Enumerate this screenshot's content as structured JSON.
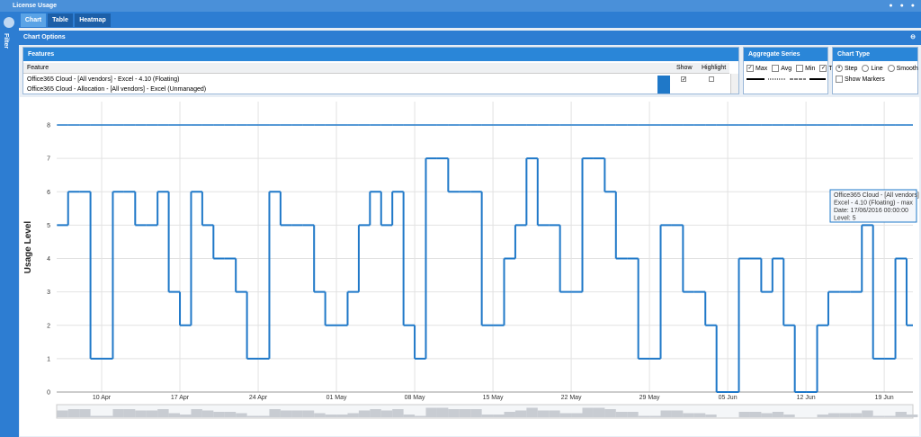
{
  "window": {
    "title": "License Usage",
    "filter": "Filter"
  },
  "tabs": [
    "Chart",
    "Table",
    "Heatmap"
  ],
  "chart_options": {
    "title": "Chart Options",
    "features": {
      "title": "Features",
      "columns": [
        "Feature",
        "Show",
        "Highlight"
      ],
      "rows": [
        "Office365 Cloud - [All vendors] - Excel - 4.10 (Floating)",
        "Office365 Cloud - Allocation - [All vendors] - Excel (Unmanaged)"
      ]
    },
    "aggregate": {
      "title": "Aggregate Series",
      "options": [
        "Max",
        "Avg",
        "Min",
        "Total"
      ],
      "checked": [
        true,
        false,
        false,
        true
      ]
    },
    "chart_type": {
      "title": "Chart Type",
      "options": [
        "Step",
        "Line",
        "Smooth"
      ],
      "selected": 0,
      "markers": "Show Markers"
    }
  },
  "tooltip": {
    "lines": [
      "Office365 Cloud - [All vendors] -",
      "Excel - 4.10 (Floating) - max",
      "Date: 17/06/2016 00:00:00",
      "Level: 5"
    ]
  },
  "chart_data": {
    "type": "step",
    "y_label": "Usage Level",
    "grid": true,
    "x": [
      "06 Apr",
      "07 Apr",
      "08 Apr",
      "09 Apr",
      "10 Apr",
      "11 Apr",
      "12 Apr",
      "13 Apr",
      "14 Apr",
      "15 Apr",
      "16 Apr",
      "17 Apr",
      "18 Apr",
      "19 Apr",
      "20 Apr",
      "21 Apr",
      "22 Apr",
      "23 Apr",
      "24 Apr",
      "25 Apr",
      "26 Apr",
      "27 Apr",
      "28 Apr",
      "29 Apr",
      "30 Apr",
      "01 May",
      "02 May",
      "03 May",
      "04 May",
      "05 May",
      "06 May",
      "07 May",
      "08 May",
      "09 May",
      "10 May",
      "11 May",
      "12 May",
      "13 May",
      "14 May",
      "15 May",
      "16 May",
      "17 May",
      "18 May",
      "19 May",
      "20 May",
      "21 May",
      "22 May",
      "23 May",
      "24 May",
      "25 May",
      "26 May",
      "27 May",
      "28 May",
      "29 May",
      "30 May",
      "31 May",
      "01 Jun",
      "02 Jun",
      "03 Jun",
      "04 Jun",
      "05 Jun",
      "06 Jun",
      "07 Jun",
      "08 Jun",
      "09 Jun",
      "10 Jun",
      "11 Jun",
      "12 Jun",
      "13 Jun",
      "14 Jun",
      "15 Jun",
      "16 Jun",
      "17 Jun",
      "18 Jun",
      "19 Jun",
      "20 Jun",
      "21 Jun"
    ],
    "xticks": [
      "10 Apr",
      "17 Apr",
      "24 Apr",
      "01 May",
      "08 May",
      "15 May",
      "22 May",
      "29 May",
      "05 Jun",
      "12 Jun",
      "19 Jun"
    ],
    "ylim": [
      0,
      8.7
    ],
    "yticks": [
      0,
      1,
      2,
      3,
      4,
      5,
      6,
      7,
      8
    ],
    "series": [
      {
        "color": "#1f78c8",
        "values": [
          5,
          6,
          6,
          1,
          1,
          6,
          6,
          5,
          5,
          6,
          3,
          2,
          6,
          5,
          4,
          4,
          3,
          1,
          1,
          6,
          5,
          5,
          5,
          3,
          2,
          2,
          3,
          5,
          6,
          5,
          6,
          2,
          1,
          7,
          7,
          6,
          6,
          6,
          2,
          2,
          4,
          5,
          7,
          5,
          5,
          3,
          3,
          7,
          7,
          6,
          4,
          4,
          1,
          1,
          5,
          5,
          3,
          3,
          2,
          0,
          0,
          4,
          4,
          3,
          4,
          2,
          0,
          0,
          2,
          3,
          3,
          3,
          5,
          1,
          1,
          4,
          2
        ]
      },
      {
        "color": "#1f78c8",
        "values": [
          8,
          8,
          8,
          8,
          8,
          8,
          8,
          8,
          8,
          8,
          8,
          8,
          8,
          8,
          8,
          8,
          8,
          8,
          8,
          8,
          8,
          8,
          8,
          8,
          8,
          8,
          8,
          8,
          8,
          8,
          8,
          8,
          8,
          8,
          8,
          8,
          8,
          8,
          8,
          8,
          8,
          8,
          8,
          8,
          8,
          8,
          8,
          8,
          8,
          8,
          8,
          8,
          8,
          8,
          8,
          8,
          8,
          8,
          8,
          8,
          8,
          8,
          8,
          8,
          8,
          8,
          8,
          8,
          8,
          8,
          8,
          8,
          8,
          8,
          8,
          8,
          8
        ]
      }
    ]
  }
}
